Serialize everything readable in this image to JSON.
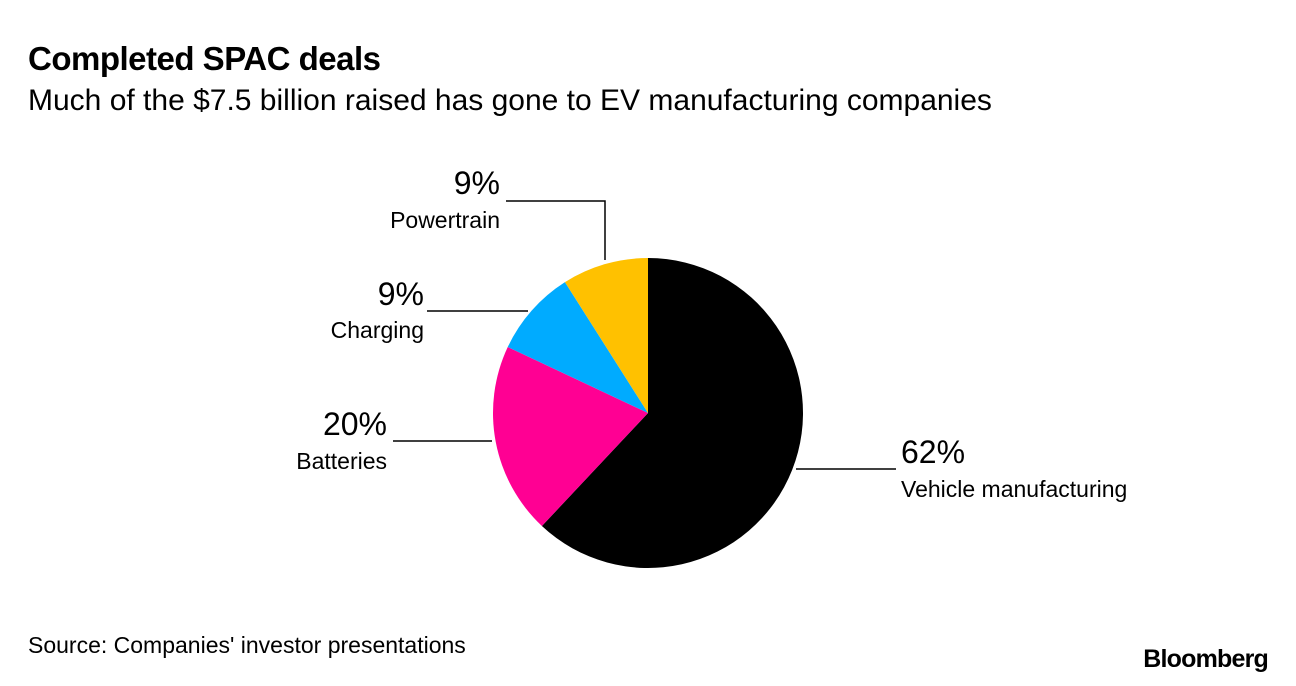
{
  "header": {
    "title": "Completed SPAC deals",
    "subtitle": "Much of the $7.5 billion raised has gone to EV manufacturing companies"
  },
  "chart_data": {
    "type": "pie",
    "title": "Completed SPAC deals",
    "subtitle": "Much of the $7.5 billion raised has gone to EV manufacturing companies",
    "slices": [
      {
        "label": "Vehicle manufacturing",
        "value": 62,
        "value_label": "62%",
        "color": "#000000"
      },
      {
        "label": "Batteries",
        "value": 20,
        "value_label": "20%",
        "color": "#ff0093"
      },
      {
        "label": "Charging",
        "value": 9,
        "value_label": "9%",
        "color": "#00abff"
      },
      {
        "label": "Powertrain",
        "value": 9,
        "value_label": "9%",
        "color": "#ffc100"
      }
    ],
    "start_angle": "12 o'clock",
    "direction": "clockwise",
    "legend": "none"
  },
  "footer": {
    "source": "Source: Companies' investor presentations",
    "logo": "Bloomberg"
  }
}
